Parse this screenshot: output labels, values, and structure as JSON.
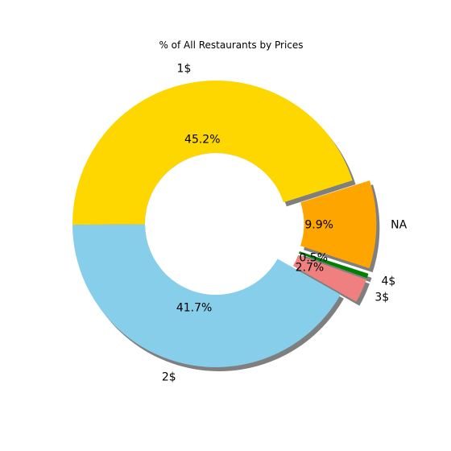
{
  "chart_data": {
    "type": "pie",
    "title": "% of All Restaurants by Prices",
    "donut": true,
    "shadow": true,
    "slices": [
      {
        "label": "NA",
        "value": 9.9,
        "pct_label": "9.9%",
        "color": "#ffa500",
        "exploded": true
      },
      {
        "label": "1$",
        "value": 45.2,
        "pct_label": "45.2%",
        "color": "#ffd700",
        "exploded": false
      },
      {
        "label": "2$",
        "value": 41.7,
        "pct_label": "41.7%",
        "color": "#87ceeb",
        "exploded": false
      },
      {
        "label": "3$",
        "value": 2.7,
        "pct_label": "2.7%",
        "color": "#f08080",
        "exploded": true
      },
      {
        "label": "4$",
        "value": 0.5,
        "pct_label": "0.5%",
        "color": "#008000",
        "exploded": true
      }
    ]
  }
}
